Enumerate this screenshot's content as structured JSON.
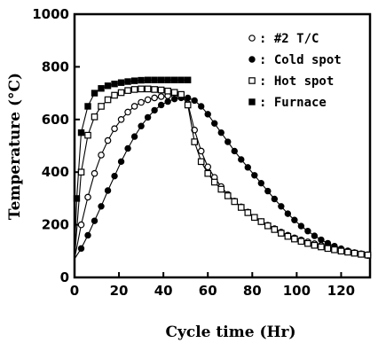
{
  "chart_data": {
    "type": "line",
    "xlabel": "Cycle time (Hr)",
    "ylabel": "Temperature (°C)",
    "xlim": [
      0,
      133
    ],
    "ylim": [
      0,
      1000
    ],
    "x_ticks": [
      0,
      20,
      40,
      60,
      80,
      100,
      120
    ],
    "y_ticks": [
      0,
      200,
      400,
      600,
      800,
      1000
    ],
    "legend_position": "top-right",
    "series": [
      {
        "name": "#2 T/C",
        "marker": "open-circle",
        "x": [
          0,
          3,
          6,
          9,
          12,
          15,
          18,
          21,
          24,
          27,
          30,
          33,
          36,
          39,
          42,
          45,
          48,
          51,
          54,
          57,
          60,
          63,
          66,
          69,
          72,
          75,
          78,
          81,
          84,
          87,
          90,
          93,
          96,
          99,
          102,
          105,
          108,
          111,
          114,
          117,
          120,
          123,
          126,
          129,
          132
        ],
        "y": [
          70,
          200,
          305,
          395,
          465,
          520,
          565,
          600,
          628,
          650,
          665,
          675,
          682,
          687,
          690,
          692,
          690,
          660,
          560,
          480,
          420,
          380,
          345,
          315,
          290,
          268,
          248,
          228,
          212,
          198,
          185,
          172,
          160,
          150,
          142,
          135,
          128,
          122,
          116,
          110,
          104,
          99,
          94,
          90,
          86
        ]
      },
      {
        "name": "Cold spot",
        "marker": "filled-circle",
        "x": [
          0,
          3,
          6,
          9,
          12,
          15,
          18,
          21,
          24,
          27,
          30,
          33,
          36,
          39,
          42,
          45,
          48,
          51,
          54,
          57,
          60,
          63,
          66,
          69,
          72,
          75,
          78,
          81,
          84,
          87,
          90,
          93,
          96,
          99,
          102,
          105,
          108,
          111,
          114,
          117,
          120,
          123,
          126,
          129,
          132
        ],
        "y": [
          70,
          110,
          160,
          215,
          270,
          330,
          385,
          440,
          490,
          535,
          575,
          608,
          635,
          655,
          668,
          678,
          682,
          682,
          672,
          650,
          620,
          585,
          550,
          515,
          480,
          448,
          418,
          388,
          358,
          328,
          298,
          270,
          242,
          218,
          195,
          176,
          158,
          143,
          130,
          119,
          109,
          101,
          94,
          88,
          83
        ]
      },
      {
        "name": "Hot spot",
        "marker": "open-square",
        "x": [
          0,
          3,
          6,
          9,
          12,
          15,
          18,
          21,
          24,
          27,
          30,
          33,
          36,
          39,
          42,
          45,
          48,
          51,
          54,
          57,
          60,
          63,
          66,
          69,
          72,
          75,
          78,
          81,
          84,
          87,
          90,
          93,
          96,
          99,
          102,
          105,
          108,
          111,
          114,
          117,
          120,
          123,
          126,
          129,
          132
        ],
        "y": [
          70,
          400,
          540,
          610,
          650,
          675,
          692,
          702,
          710,
          714,
          716,
          716,
          714,
          712,
          708,
          703,
          695,
          655,
          515,
          440,
          395,
          362,
          335,
          310,
          288,
          266,
          246,
          228,
          212,
          196,
          182,
          168,
          156,
          146,
          137,
          129,
          122,
          116,
          110,
          105,
          100,
          96,
          92,
          88,
          85
        ]
      },
      {
        "name": "Furnace",
        "marker": "filled-square",
        "x": [
          0,
          1,
          3,
          6,
          9,
          12,
          15,
          18,
          21,
          24,
          27,
          30,
          33,
          36,
          39,
          42,
          45,
          48,
          51
        ],
        "y": [
          80,
          300,
          550,
          650,
          700,
          718,
          728,
          735,
          740,
          744,
          747,
          749,
          750,
          750,
          750,
          750,
          750,
          750,
          750
        ]
      }
    ]
  }
}
